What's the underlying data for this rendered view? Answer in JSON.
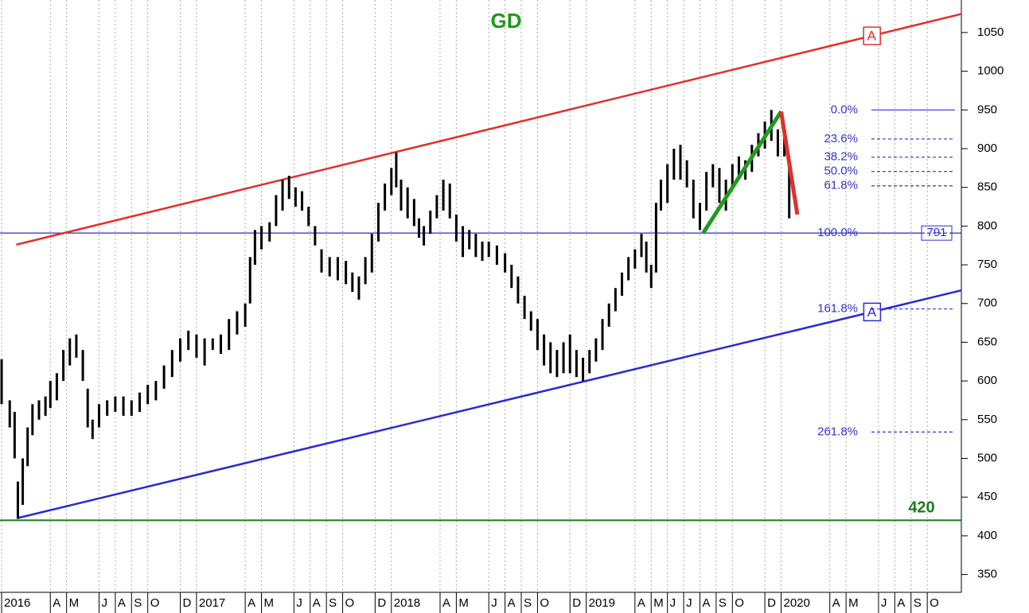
{
  "chart_data": {
    "type": "ohlc",
    "title": "GD",
    "title_color": "#1a9a1a",
    "xlim": [
      -0.1,
      59.1
    ],
    "ylim": [
      327,
      1092
    ],
    "yticks": [
      350,
      400,
      450,
      500,
      550,
      600,
      650,
      700,
      750,
      800,
      850,
      900,
      950,
      1000,
      1050
    ],
    "xticks": [
      {
        "value": 0,
        "label": "2016"
      },
      {
        "value": 3,
        "label": "A"
      },
      {
        "value": 4,
        "label": "M"
      },
      {
        "value": 6,
        "label": "J"
      },
      {
        "value": 7,
        "label": "A"
      },
      {
        "value": 8,
        "label": "S"
      },
      {
        "value": 9,
        "label": "O"
      },
      {
        "value": 11,
        "label": "D"
      },
      {
        "value": 12,
        "label": "2017"
      },
      {
        "value": 15,
        "label": "A"
      },
      {
        "value": 16,
        "label": "M"
      },
      {
        "value": 18,
        "label": "J"
      },
      {
        "value": 19,
        "label": "A"
      },
      {
        "value": 20,
        "label": "S"
      },
      {
        "value": 21,
        "label": "O"
      },
      {
        "value": 23,
        "label": "D"
      },
      {
        "value": 24,
        "label": "2018"
      },
      {
        "value": 27,
        "label": "A"
      },
      {
        "value": 28,
        "label": "M"
      },
      {
        "value": 30,
        "label": "J"
      },
      {
        "value": 31,
        "label": "A"
      },
      {
        "value": 32,
        "label": "S"
      },
      {
        "value": 33,
        "label": "O"
      },
      {
        "value": 35,
        "label": "D"
      },
      {
        "value": 36,
        "label": "2019"
      },
      {
        "value": 39,
        "label": "A"
      },
      {
        "value": 40,
        "label": "M"
      },
      {
        "value": 41,
        "label": "J"
      },
      {
        "value": 42,
        "label": "J"
      },
      {
        "value": 43,
        "label": "A"
      },
      {
        "value": 44,
        "label": "S"
      },
      {
        "value": 45,
        "label": "O"
      },
      {
        "value": 47,
        "label": "D"
      },
      {
        "value": 48,
        "label": "2020"
      },
      {
        "value": 51,
        "label": "A"
      },
      {
        "value": 52,
        "label": "M"
      },
      {
        "value": 54,
        "label": "J"
      },
      {
        "value": 55,
        "label": "A"
      },
      {
        "value": 56,
        "label": "S"
      },
      {
        "value": 57,
        "label": "O"
      }
    ],
    "grid": true,
    "color": "#000000",
    "bars": {
      "x": [
        0.0,
        0.5,
        0.8,
        1.0,
        1.3,
        1.6,
        1.9,
        2.3,
        2.7,
        3.0,
        3.4,
        3.8,
        4.2,
        4.6,
        5.0,
        5.3,
        5.6,
        6.0,
        6.5,
        7.0,
        7.5,
        8.0,
        8.5,
        9.0,
        9.5,
        10.0,
        10.5,
        11.0,
        11.5,
        12.0,
        12.5,
        13.0,
        13.5,
        14.0,
        14.5,
        15.0,
        15.3,
        15.6,
        16.0,
        16.5,
        16.9,
        17.3,
        17.7,
        18.1,
        18.5,
        18.9,
        19.3,
        19.7,
        20.2,
        20.7,
        21.2,
        21.6,
        22.0,
        22.4,
        22.8,
        23.2,
        23.6,
        24.0,
        24.3,
        24.6,
        25.0,
        25.4,
        25.7,
        26.0,
        26.4,
        26.8,
        27.2,
        27.6,
        28.0,
        28.4,
        28.8,
        29.2,
        29.6,
        30.0,
        30.5,
        31.0,
        31.4,
        31.8,
        32.2,
        32.6,
        33.0,
        33.4,
        33.8,
        34.2,
        34.6,
        35.0,
        35.4,
        35.8,
        36.2,
        36.6,
        37.0,
        37.4,
        37.8,
        38.2,
        38.6,
        39.0,
        39.4,
        39.7,
        40.0,
        40.3,
        40.6,
        41.0,
        41.4,
        41.8,
        42.2,
        42.6,
        43.0,
        43.4,
        43.8,
        44.2,
        44.6,
        45.0,
        45.4,
        45.8,
        46.2,
        46.6,
        47.0,
        47.4,
        47.8,
        48.2,
        48.5
      ],
      "high": [
        628,
        575,
        560,
        470,
        500,
        540,
        570,
        575,
        580,
        600,
        610,
        640,
        655,
        660,
        640,
        590,
        550,
        570,
        575,
        580,
        580,
        575,
        585,
        595,
        600,
        620,
        640,
        655,
        665,
        660,
        655,
        655,
        660,
        680,
        690,
        700,
        760,
        795,
        800,
        805,
        840,
        860,
        865,
        850,
        845,
        825,
        800,
        770,
        760,
        760,
        755,
        740,
        735,
        760,
        790,
        830,
        855,
        875,
        895,
        860,
        850,
        835,
        810,
        800,
        820,
        840,
        860,
        855,
        815,
        800,
        795,
        790,
        780,
        780,
        775,
        765,
        750,
        735,
        710,
        690,
        680,
        660,
        650,
        640,
        650,
        660,
        640,
        630,
        640,
        655,
        680,
        700,
        720,
        740,
        760,
        770,
        790,
        780,
        750,
        830,
        860,
        880,
        900,
        905,
        885,
        860,
        830,
        870,
        880,
        875,
        860,
        880,
        890,
        885,
        905,
        920,
        935,
        950,
        925,
        925,
        885
      ],
      "low": [
        570,
        540,
        500,
        422,
        440,
        490,
        530,
        550,
        555,
        565,
        575,
        600,
        620,
        630,
        600,
        540,
        525,
        540,
        555,
        560,
        555,
        555,
        560,
        570,
        575,
        590,
        605,
        625,
        640,
        630,
        620,
        640,
        635,
        640,
        660,
        670,
        700,
        750,
        770,
        780,
        800,
        820,
        835,
        825,
        820,
        800,
        775,
        740,
        735,
        730,
        725,
        715,
        705,
        725,
        740,
        780,
        820,
        840,
        850,
        820,
        810,
        800,
        785,
        775,
        790,
        810,
        820,
        810,
        780,
        760,
        770,
        760,
        755,
        760,
        750,
        740,
        720,
        700,
        680,
        665,
        640,
        620,
        610,
        605,
        610,
        610,
        605,
        600,
        610,
        625,
        640,
        670,
        690,
        710,
        730,
        745,
        760,
        740,
        720,
        740,
        820,
        830,
        860,
        860,
        850,
        810,
        795,
        820,
        850,
        830,
        820,
        850,
        860,
        860,
        870,
        890,
        900,
        910,
        890,
        890,
        810
      ]
    },
    "trendlines": [
      {
        "label": "A",
        "color": "#e0302b",
        "x": [
          0.9,
          59.1
        ],
        "y": [
          776,
          1074
        ]
      },
      {
        "label": "A",
        "color": "#2a2ad0",
        "x": [
          1.0,
          59.1
        ],
        "y": [
          423,
          717
        ]
      }
    ],
    "levels": [
      {
        "value": 420,
        "label": "420",
        "color": "#1a7a1a"
      },
      {
        "value": 791,
        "label": "791",
        "color": "#2a2ad0"
      }
    ],
    "swings": [
      {
        "color": "#1f9a1f",
        "x": [
          43.2,
          48.0
        ],
        "y": [
          791,
          948
        ]
      },
      {
        "color": "#e0302b",
        "x": [
          48.0,
          49.0
        ],
        "y": [
          948,
          815
        ]
      }
    ],
    "fibonacci": {
      "color": "#3333cc",
      "levels": [
        {
          "value": 950,
          "label": "0.0%"
        },
        {
          "value": 912.5,
          "label": "23.6%"
        },
        {
          "value": 889,
          "label": "38.2%"
        },
        {
          "value": 870.5,
          "label": "50.0%"
        },
        {
          "value": 852,
          "label": "61.8%"
        },
        {
          "value": 791,
          "label": "100.0%"
        },
        {
          "value": 693,
          "label": "161.8%"
        },
        {
          "value": 534,
          "label": "261.8%"
        }
      ]
    }
  }
}
